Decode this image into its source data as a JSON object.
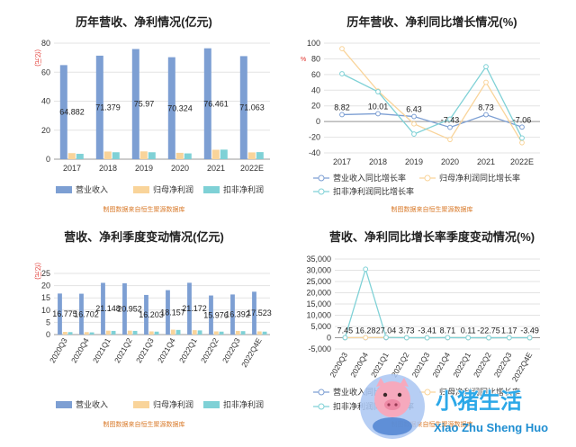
{
  "source_note": "制图数据来自恒生聚源数据库",
  "colors": {
    "revenue": "#7d9fd3",
    "net_profit": "#f9d49a",
    "deducted_profit": "#7fd1d6"
  },
  "watermark": {
    "name": "小猪生活",
    "pinyin": "Xiao Zhu Sheng Huo"
  },
  "chart_data": [
    {
      "type": "bar",
      "title": "历年营收、净利情况(亿元)",
      "unit_label": "(亿元)",
      "categories": [
        "2017",
        "2018",
        "2019",
        "2020",
        "2021",
        "2022E"
      ],
      "ylim": [
        0,
        80
      ],
      "yticks": [
        0,
        20,
        40,
        60,
        80
      ],
      "series": [
        {
          "name": "营业收入",
          "values": [
            64.882,
            71.379,
            75.97,
            70.324,
            76.461,
            71.063
          ]
        },
        {
          "name": "归母净利润",
          "values": [
            4.2,
            5.3,
            5.4,
            4.4,
            6.5,
            4.7
          ]
        },
        {
          "name": "扣非净利润",
          "values": [
            3.7,
            4.8,
            4.8,
            4.0,
            6.6,
            4.9
          ]
        }
      ],
      "data_labels": [
        "64.882",
        "71.379",
        "75.97",
        "70.324",
        "76.461",
        "71.063"
      ],
      "grid": true,
      "legend_position": "bottom"
    },
    {
      "type": "line",
      "title": "历年营收、净利同比增长情况(%)",
      "unit_label": "%",
      "categories": [
        "2017",
        "2018",
        "2019",
        "2020",
        "2021",
        "2022E"
      ],
      "ylim": [
        -40,
        100
      ],
      "yticks": [
        -40,
        -20,
        0,
        20,
        40,
        60,
        80,
        100
      ],
      "series": [
        {
          "name": "营业收入同比增长率",
          "values": [
            8.82,
            10.01,
            6.43,
            -7.43,
            8.73,
            -7.06
          ]
        },
        {
          "name": "归母净利润同比增长率",
          "values": [
            93,
            39,
            -3,
            -23,
            50,
            -27
          ]
        },
        {
          "name": "扣非净利润同比增长率",
          "values": [
            61,
            38,
            -16,
            3,
            70,
            -21
          ]
        }
      ],
      "data_labels": [
        "8.82",
        "10.01",
        "6.43",
        "-7.43",
        "8.73",
        "-7.06"
      ],
      "grid": true,
      "legend_position": "bottom"
    },
    {
      "type": "bar",
      "title": "营收、净利季度变动情况(亿元)",
      "unit_label": "(亿元)",
      "categories": [
        "2020Q3",
        "2020Q4",
        "2021Q1",
        "2021Q2",
        "2021Q3",
        "2021Q4",
        "2022Q1",
        "2022Q2",
        "2022Q3",
        "2022Q4E"
      ],
      "ylim": [
        0,
        25
      ],
      "yticks": [
        0,
        5,
        10,
        15,
        20,
        25
      ],
      "series": [
        {
          "name": "营业收入",
          "values": [
            16.775,
            16.702,
            21.148,
            20.952,
            16.203,
            18.157,
            21.172,
            15.976,
            16.392,
            17.523
          ]
        },
        {
          "name": "归母净利润",
          "values": [
            1.1,
            1.0,
            1.6,
            1.6,
            1.3,
            2.0,
            1.8,
            1.3,
            1.5,
            1.3
          ]
        },
        {
          "name": "扣非净利润",
          "values": [
            1.0,
            0.9,
            1.5,
            1.5,
            1.2,
            1.9,
            1.7,
            1.2,
            1.4,
            1.2
          ]
        }
      ],
      "data_labels": [
        "16.775",
        "16.702",
        "21.148",
        "20.952",
        "16.203",
        "18.157",
        "21.172",
        "15.976",
        "16.392",
        "17.523"
      ],
      "grid": true,
      "legend_position": "bottom"
    },
    {
      "type": "line",
      "title": "营收、净利同比增长率季度变动情况(%)",
      "categories": [
        "2020Q3",
        "2020Q4",
        "2021Q1",
        "2021Q2",
        "2021Q3",
        "2021Q4",
        "2022Q1",
        "2022Q2",
        "2022Q3",
        "2022Q4E"
      ],
      "ylim": [
        -5000,
        35000
      ],
      "yticks": [
        -5000,
        0,
        5000,
        10000,
        15000,
        20000,
        25000,
        30000,
        35000
      ],
      "ytick_labels": [
        "-5,000",
        "0",
        "5,000",
        "10,000",
        "15,000",
        "20,000",
        "25,000",
        "30,000",
        "35,000"
      ],
      "series": [
        {
          "name": "营业收入同比增长率",
          "values": [
            7.45,
            16.28,
            27.04,
            3.73,
            -3.41,
            8.71,
            0.11,
            -22.75,
            1.17,
            -3.49
          ]
        },
        {
          "name": "归母净利润同比增长率",
          "values": [
            20,
            60,
            120,
            10,
            -20,
            40,
            10,
            -15,
            5,
            -10
          ]
        },
        {
          "name": "扣非净利润同比增长率",
          "values": [
            30,
            30500,
            150,
            15,
            -25,
            50,
            15,
            -20,
            8,
            -12
          ]
        }
      ],
      "data_labels": [
        "7.45",
        "16.28",
        "27.04",
        "3.73",
        "-3.41",
        "8.71",
        "0.11",
        "-22.75",
        "1.17",
        "-3.49"
      ],
      "grid": true,
      "legend_position": "bottom"
    }
  ]
}
